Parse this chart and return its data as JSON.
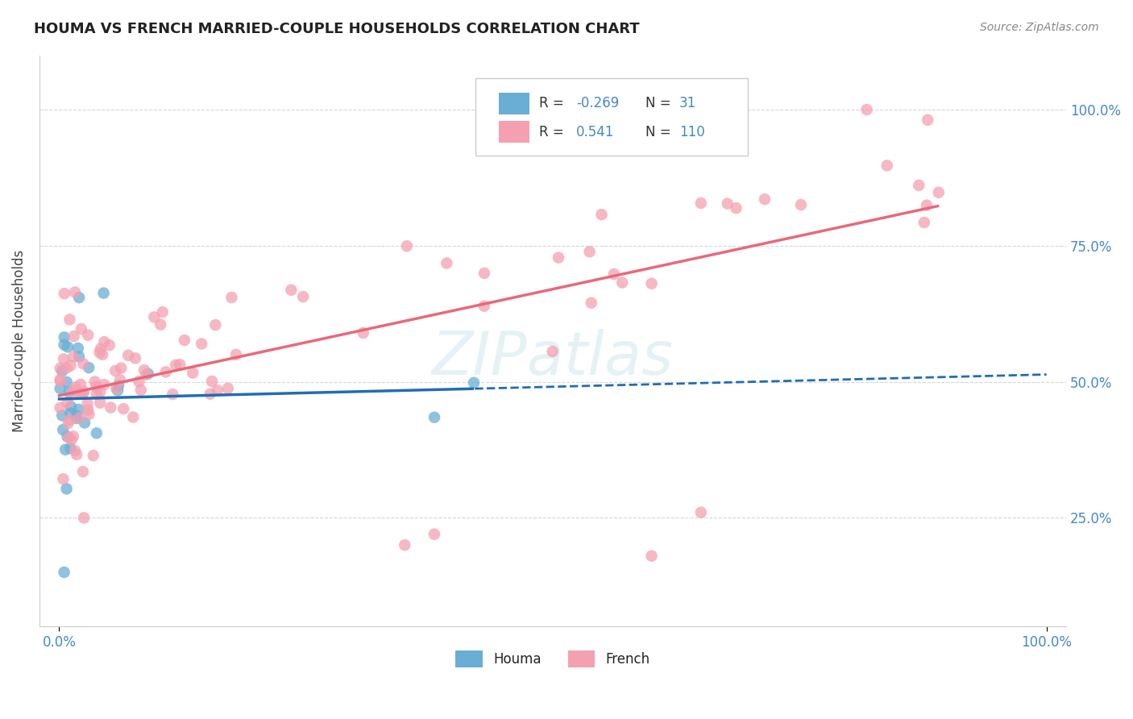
{
  "title": "HOUMA VS FRENCH MARRIED-COUPLE HOUSEHOLDS CORRELATION CHART",
  "source": "Source: ZipAtlas.com",
  "ylabel": "Married-couple Households",
  "watermark": "ZIPatlas",
  "legend_houma_r": "-0.269",
  "legend_houma_n": "31",
  "legend_french_r": "0.541",
  "legend_french_n": "110",
  "houma_color": "#6aaed6",
  "french_color": "#f4a0b0",
  "houma_line_color": "#1f6eb5",
  "french_line_color": "#e8697a",
  "grid_color": "#cccccc",
  "title_color": "#222222",
  "label_color": "#4488cc"
}
